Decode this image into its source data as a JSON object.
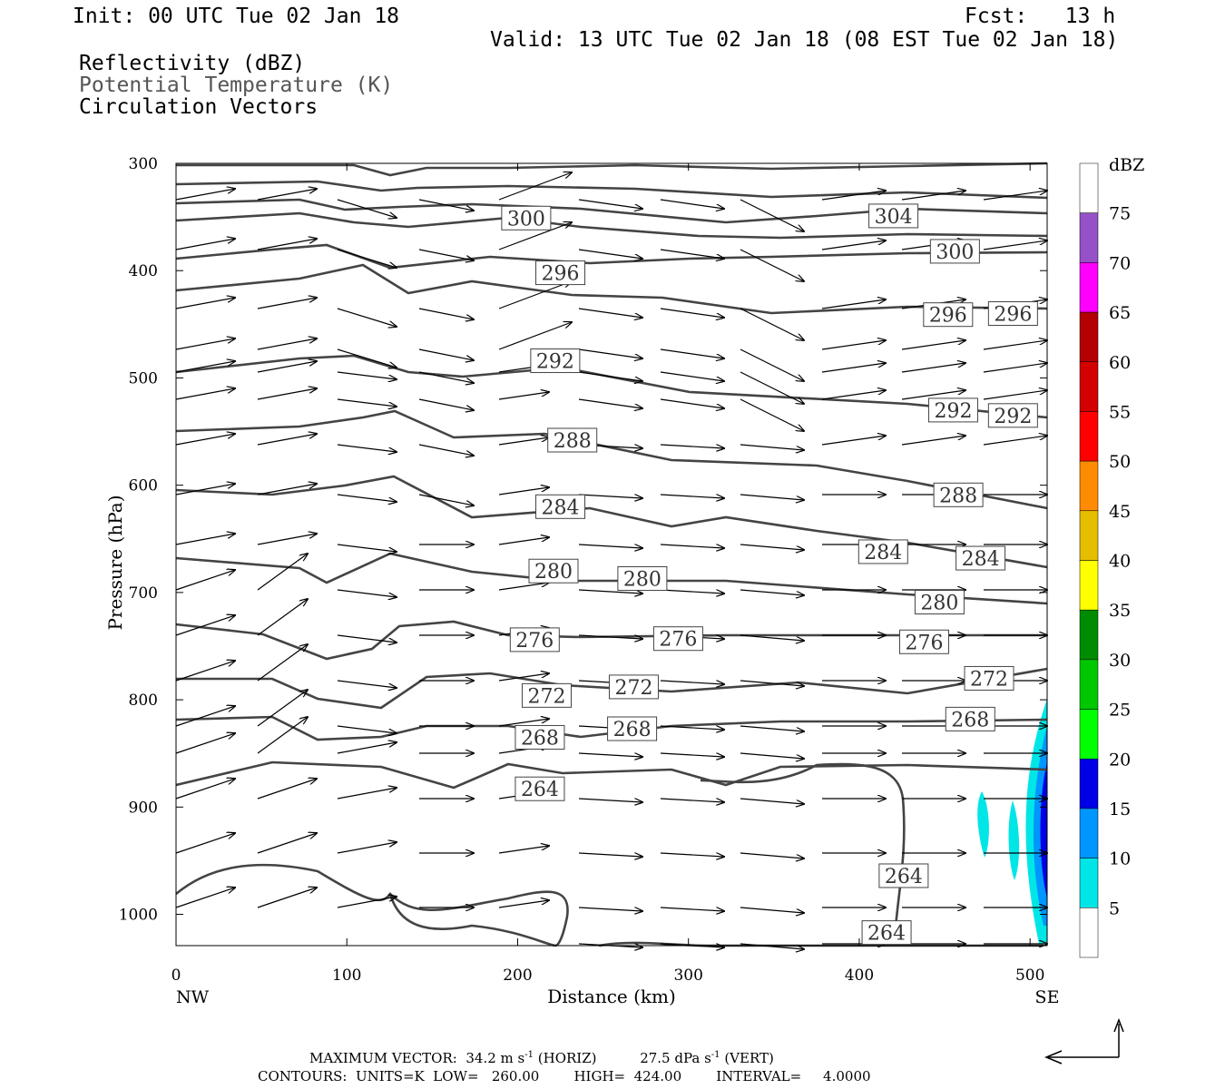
{
  "header": {
    "init": "Init: 00 UTC Tue 02 Jan 18",
    "fcst": "Fcst:   13 h",
    "valid": "Valid: 13 UTC Tue 02 Jan 18 (08 EST Tue 02 Jan 18)",
    "field1": "Reflectivity (dBZ)",
    "field2": "Potential Temperature (K)",
    "field3": "Circulation Vectors"
  },
  "footer": {
    "max_vector_label": "MAXIMUM VECTOR:",
    "max_horiz": "34.2 m s",
    "horiz_suffix": " (HORIZ)",
    "max_vert": "27.5 dPa s",
    "vert_suffix": " (VERT)",
    "exp": "-1",
    "contours": "CONTOURS:  UNITS=K  LOW=   260.00        HIGH=  424.00        INTERVAL=     4.0000"
  },
  "chart_data": {
    "type": "contour",
    "xlabel": "Distance (km)",
    "ylabel": "Pressure (hPa)",
    "xlim": [
      0,
      510
    ],
    "ylim": [
      1040,
      300
    ],
    "x_ticks": [
      "0",
      "100",
      "200",
      "300",
      "400",
      "500"
    ],
    "x_tick_values": [
      0,
      100,
      200,
      300,
      400,
      500
    ],
    "y_ticks": [
      "300",
      "400",
      "500",
      "600",
      "700",
      "800",
      "900",
      "1000"
    ],
    "y_tick_values": [
      300,
      400,
      500,
      600,
      700,
      800,
      900,
      1000
    ],
    "left_endpoint": "NW",
    "right_endpoint": "SE",
    "colorbar": {
      "unit_label": "dBZ",
      "labels": [
        "5",
        "10",
        "15",
        "20",
        "25",
        "30",
        "35",
        "40",
        "45",
        "50",
        "55",
        "60",
        "65",
        "70",
        "75"
      ],
      "colors": [
        "#ffffff",
        "#00e6e6",
        "#0096ff",
        "#0000e6",
        "#00ff00",
        "#00c800",
        "#008c00",
        "#ffff00",
        "#e6be00",
        "#ff8c00",
        "#ff0000",
        "#d20000",
        "#b40000",
        "#ff00ff",
        "#9650c8",
        "#ffffff"
      ]
    },
    "isentrope_labels": [
      {
        "text": "300",
        "x": 205,
        "p": 351
      },
      {
        "text": "304",
        "x": 420,
        "p": 349
      },
      {
        "text": "300",
        "x": 456,
        "p": 382
      },
      {
        "text": "296",
        "x": 225,
        "p": 402
      },
      {
        "text": "296",
        "x": 452,
        "p": 441
      },
      {
        "text": "296",
        "x": 490,
        "p": 440
      },
      {
        "text": "292",
        "x": 222,
        "p": 484
      },
      {
        "text": "292",
        "x": 455,
        "p": 530
      },
      {
        "text": "292",
        "x": 490,
        "p": 535
      },
      {
        "text": "288",
        "x": 232,
        "p": 558
      },
      {
        "text": "288",
        "x": 458,
        "p": 609
      },
      {
        "text": "284",
        "x": 225,
        "p": 620
      },
      {
        "text": "284",
        "x": 414,
        "p": 662
      },
      {
        "text": "284",
        "x": 471,
        "p": 668
      },
      {
        "text": "280",
        "x": 221,
        "p": 680
      },
      {
        "text": "280",
        "x": 273,
        "p": 687
      },
      {
        "text": "280",
        "x": 447,
        "p": 709
      },
      {
        "text": "276",
        "x": 210,
        "p": 744
      },
      {
        "text": "276",
        "x": 294,
        "p": 743
      },
      {
        "text": "276",
        "x": 438,
        "p": 746
      },
      {
        "text": "272",
        "x": 217,
        "p": 796
      },
      {
        "text": "272",
        "x": 268,
        "p": 788
      },
      {
        "text": "272",
        "x": 476,
        "p": 780
      },
      {
        "text": "268",
        "x": 213,
        "p": 835
      },
      {
        "text": "268",
        "x": 267,
        "p": 827
      },
      {
        "text": "268",
        "x": 465,
        "p": 818
      },
      {
        "text": "264",
        "x": 213,
        "p": 883
      },
      {
        "text": "264",
        "x": 426,
        "p": 964
      },
      {
        "text": "264",
        "x": 416,
        "p": 1017
      }
    ],
    "reflectivity_note": "weak echoes 5-20 dBZ near x=470-510 km, 800-1040 hPa"
  },
  "colors": {
    "contour": "#444444",
    "vector": "#000000",
    "axis": "#000000"
  }
}
